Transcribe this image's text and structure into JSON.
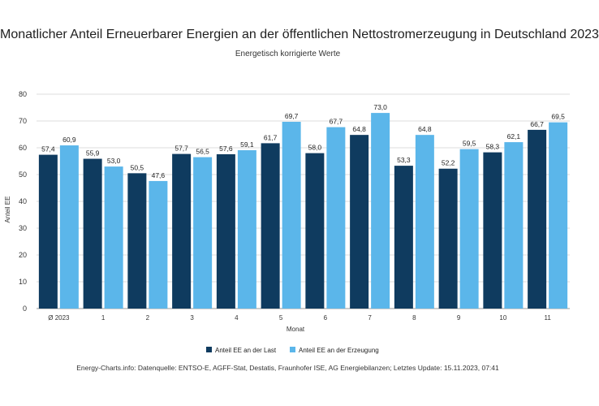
{
  "chart_data": {
    "type": "bar",
    "title": "Monatlicher Anteil Erneuerbarer Energien an der öffentlichen Nettostromerzeugung in Deutschland 2023",
    "subtitle": "Energetisch korrigierte Werte",
    "xlabel": "Monat",
    "ylabel": "Anteil EE",
    "ylim": [
      0,
      80
    ],
    "yticks": [
      0,
      10,
      20,
      30,
      40,
      50,
      60,
      70,
      80
    ],
    "grid": true,
    "legend_position": "bottom",
    "categories": [
      "Ø 2023",
      "1",
      "2",
      "3",
      "4",
      "5",
      "6",
      "7",
      "8",
      "9",
      "10",
      "11"
    ],
    "series": [
      {
        "name": "Anteil EE an der Last",
        "color": "#0f3b5f",
        "values": [
          57.4,
          55.9,
          50.5,
          57.7,
          57.6,
          61.7,
          58.0,
          64.8,
          53.3,
          52.2,
          58.3,
          66.7
        ],
        "labels": [
          "57,4",
          "55,9",
          "50,5",
          "57,7",
          "57,6",
          "61,7",
          "58,0",
          "64,8",
          "53,3",
          "52,2",
          "58,3",
          "66,7"
        ]
      },
      {
        "name": "Anteil EE an der Erzeugung",
        "color": "#5bb6ea",
        "values": [
          60.9,
          53.0,
          47.6,
          56.5,
          59.1,
          69.7,
          67.7,
          73.0,
          64.8,
          59.5,
          62.1,
          69.5
        ],
        "labels": [
          "60,9",
          "53,0",
          "47,6",
          "56,5",
          "59,1",
          "69,7",
          "67,7",
          "73,0",
          "64,8",
          "59,5",
          "62,1",
          "69,5"
        ]
      }
    ]
  },
  "footer": {
    "source": "Energy-Charts.info: Datenquelle: ENTSO-E, AGFF-Stat, Destatis, Fraunhofer ISE, AG Energiebilanzen; Letztes Update: 15.11.2023, 07:41"
  }
}
